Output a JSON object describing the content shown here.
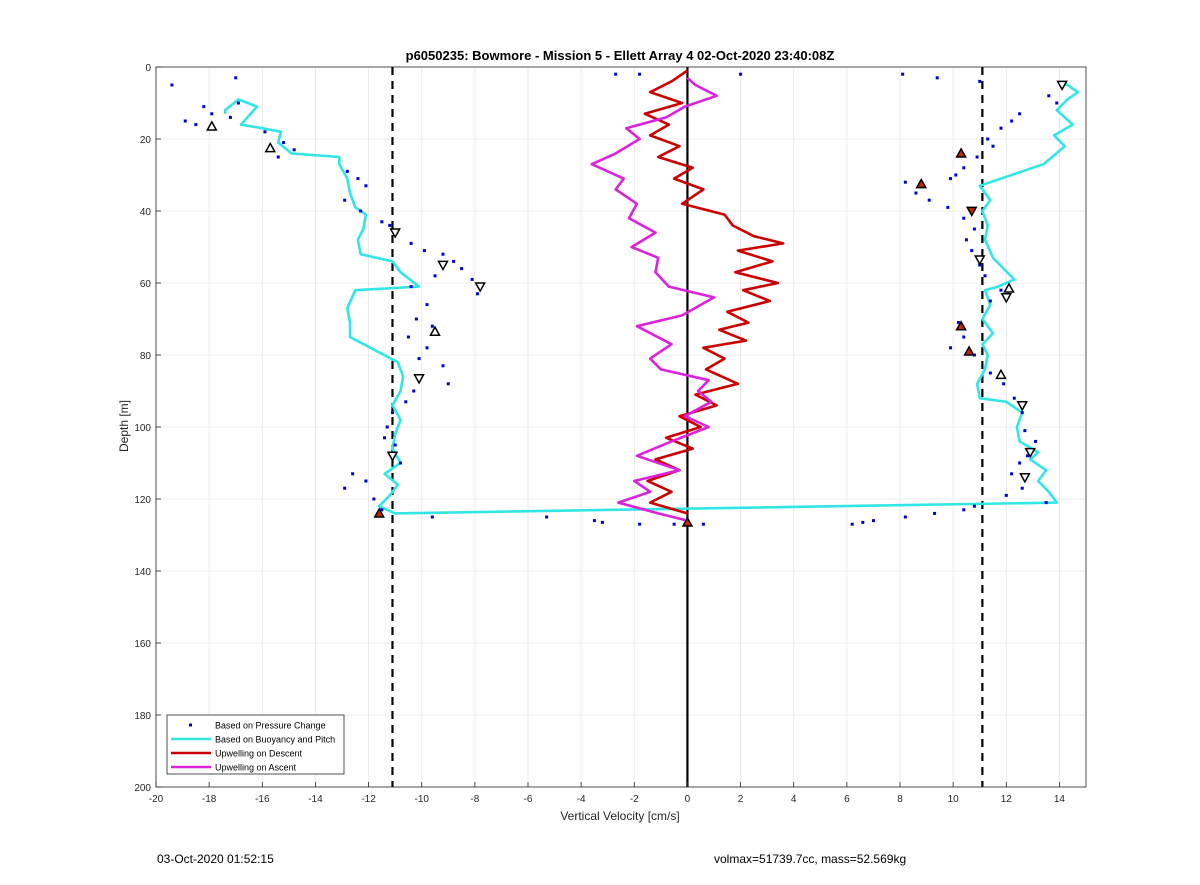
{
  "chart_data": {
    "type": "scatter",
    "title": "p6050235: Bowmore - Mission 5 - Ellett Array 4 02-Oct-2020 23:40:08Z",
    "xlabel": "Vertical Velocity [cm/s]",
    "ylabel": "Depth [m]",
    "xlim": [
      -20,
      15
    ],
    "ylim": [
      0,
      200
    ],
    "y_reversed": true,
    "grid": true,
    "x_ticks": [
      -20,
      -18,
      -16,
      -14,
      -12,
      -10,
      -8,
      -6,
      -4,
      -2,
      0,
      2,
      4,
      6,
      8,
      10,
      12,
      14
    ],
    "y_ticks": [
      0,
      20,
      40,
      60,
      80,
      100,
      120,
      140,
      160,
      180,
      200
    ],
    "legend_position": "bottom-left",
    "legend": [
      {
        "label": "Based on Pressure Change",
        "color": "#0000CC",
        "style": "dot"
      },
      {
        "label": "Based on Buoyancy and Pitch",
        "color": "#33E6E6",
        "style": "line"
      },
      {
        "label": "Upwelling on Descent",
        "color": "#CC0000",
        "style": "line"
      },
      {
        "label": "Upwelling on Ascent",
        "color": "#DD22DD",
        "style": "line"
      }
    ],
    "reference_lines": [
      {
        "x": -11.1,
        "style": "dashed",
        "color": "#000000"
      },
      {
        "x": 11.1,
        "style": "dashed",
        "color": "#000000"
      },
      {
        "x": 0,
        "style": "solid",
        "color": "#000000"
      }
    ],
    "series": [
      {
        "name": "Based on Buoyancy and Pitch",
        "color": "#33E6E6",
        "points": [
          [
            14.1,
            4
          ],
          [
            14.7,
            7
          ],
          [
            14.3,
            9
          ],
          [
            13.9,
            12
          ],
          [
            14.5,
            16
          ],
          [
            13.8,
            19
          ],
          [
            14.2,
            22
          ],
          [
            13.4,
            27
          ],
          [
            12.2,
            30
          ],
          [
            11,
            33
          ],
          [
            11.4,
            37
          ],
          [
            11.1,
            40
          ],
          [
            11.3,
            44
          ],
          [
            11.2,
            48
          ],
          [
            11.5,
            53
          ],
          [
            11.9,
            56
          ],
          [
            12.3,
            59
          ],
          [
            11.7,
            61
          ],
          [
            11.2,
            62
          ],
          [
            11.4,
            66
          ],
          [
            11.1,
            70
          ],
          [
            11.5,
            74
          ],
          [
            11.1,
            77
          ],
          [
            11.3,
            80
          ],
          [
            11.2,
            84
          ],
          [
            10.9,
            88
          ],
          [
            11,
            92
          ],
          [
            12,
            93
          ],
          [
            12.6,
            96
          ],
          [
            12.4,
            100
          ],
          [
            12.5,
            104
          ],
          [
            13.2,
            107
          ],
          [
            12.9,
            109
          ],
          [
            13.5,
            112
          ],
          [
            13.2,
            115
          ],
          [
            13.6,
            118
          ],
          [
            13.9,
            121
          ],
          [
            -11,
            124
          ],
          [
            -11.6,
            122
          ],
          [
            -11.2,
            119
          ],
          [
            -10.9,
            116
          ],
          [
            -11.4,
            113
          ],
          [
            -10.8,
            110
          ],
          [
            -11.1,
            106
          ],
          [
            -11,
            102
          ],
          [
            -10.8,
            98
          ],
          [
            -11.1,
            94
          ],
          [
            -10.8,
            90
          ],
          [
            -10.7,
            86
          ],
          [
            -10.9,
            82
          ],
          [
            -12.7,
            75
          ],
          [
            -12.7,
            71
          ],
          [
            -12.8,
            67
          ],
          [
            -12.5,
            62
          ],
          [
            -10.1,
            61
          ],
          [
            -10.8,
            57
          ],
          [
            -11.1,
            54
          ],
          [
            -12.3,
            52
          ],
          [
            -12.4,
            48
          ],
          [
            -12.2,
            45
          ],
          [
            -12.1,
            41
          ],
          [
            -12.5,
            39
          ],
          [
            -12.7,
            35
          ],
          [
            -12.8,
            31
          ],
          [
            -13.1,
            27
          ],
          [
            -13.1,
            25
          ],
          [
            -14.9,
            24
          ],
          [
            -15.4,
            21
          ],
          [
            -15.3,
            18
          ],
          [
            -16,
            17
          ],
          [
            -16.8,
            16
          ],
          [
            -16.2,
            11
          ],
          [
            -16.9,
            9
          ],
          [
            -17.4,
            12
          ],
          [
            -17.4,
            13
          ]
        ]
      },
      {
        "name": "Upwelling on Descent",
        "color": "#CC0000",
        "points": [
          [
            0,
            1
          ],
          [
            -0.6,
            4
          ],
          [
            -1.4,
            7
          ],
          [
            -0.2,
            10
          ],
          [
            -1.6,
            13
          ],
          [
            -0.7,
            16
          ],
          [
            -1.4,
            19
          ],
          [
            -0.3,
            22
          ],
          [
            -1.1,
            25
          ],
          [
            0.2,
            28
          ],
          [
            -0.5,
            31
          ],
          [
            0.6,
            34
          ],
          [
            -0.2,
            38
          ],
          [
            1.4,
            41
          ],
          [
            1.7,
            44
          ],
          [
            2.5,
            47
          ],
          [
            3.6,
            49
          ],
          [
            1.9,
            51
          ],
          [
            3.2,
            54
          ],
          [
            1.8,
            57
          ],
          [
            3.4,
            60
          ],
          [
            2.1,
            62
          ],
          [
            3.1,
            65
          ],
          [
            1.5,
            68
          ],
          [
            2.3,
            71
          ],
          [
            1.2,
            73
          ],
          [
            2.2,
            76
          ],
          [
            0.6,
            78
          ],
          [
            1.4,
            81
          ],
          [
            0.7,
            84
          ],
          [
            1.9,
            88
          ],
          [
            0.3,
            91
          ],
          [
            1.1,
            94
          ],
          [
            -0.3,
            97
          ],
          [
            0.5,
            100
          ],
          [
            -0.8,
            103
          ],
          [
            0.2,
            106
          ],
          [
            -1.2,
            109
          ],
          [
            -0.3,
            112
          ],
          [
            -1.5,
            115
          ],
          [
            -0.6,
            118
          ],
          [
            -1.4,
            121
          ],
          [
            0,
            124
          ]
        ]
      },
      {
        "name": "Upwelling on Ascent",
        "color": "#DD22DD",
        "points": [
          [
            0,
            126
          ],
          [
            -1.1,
            124
          ],
          [
            -2.6,
            121
          ],
          [
            -1.4,
            118
          ],
          [
            -2.0,
            115
          ],
          [
            -0.3,
            112
          ],
          [
            -1.9,
            108
          ],
          [
            -0.6,
            104
          ],
          [
            0.8,
            100
          ],
          [
            -0.1,
            97
          ],
          [
            0.9,
            93
          ],
          [
            0.4,
            90
          ],
          [
            0.8,
            87
          ],
          [
            -1.0,
            84
          ],
          [
            -1.4,
            81
          ],
          [
            -0.6,
            77
          ],
          [
            -1.9,
            72
          ],
          [
            -0.2,
            69
          ],
          [
            1.0,
            64
          ],
          [
            -0.7,
            61
          ],
          [
            -1.2,
            57
          ],
          [
            -1.1,
            53
          ],
          [
            -2.1,
            50
          ],
          [
            -1.2,
            46
          ],
          [
            -2.2,
            42
          ],
          [
            -1.9,
            38
          ],
          [
            -2.7,
            34
          ],
          [
            -2.4,
            31
          ],
          [
            -3.6,
            27
          ],
          [
            -2.7,
            24
          ],
          [
            -1.8,
            20
          ],
          [
            -2.3,
            17
          ],
          [
            -0.8,
            14
          ],
          [
            -0.1,
            11
          ],
          [
            1.1,
            8
          ],
          [
            0.3,
            5
          ],
          [
            0,
            3
          ]
        ]
      },
      {
        "name": "Based on Pressure Change",
        "color": "#0000CC",
        "points": [
          [
            -19.4,
            5
          ],
          [
            -17,
            3
          ],
          [
            -18.2,
            11
          ],
          [
            -17.9,
            13
          ],
          [
            -17.2,
            14
          ],
          [
            -18.9,
            15
          ],
          [
            -18.5,
            16
          ],
          [
            -16.9,
            10
          ],
          [
            -15.9,
            18
          ],
          [
            -15.2,
            21
          ],
          [
            -14.8,
            23
          ],
          [
            -15.4,
            25
          ],
          [
            -12.8,
            29
          ],
          [
            -12.4,
            31
          ],
          [
            -12.1,
            33
          ],
          [
            -12.9,
            37
          ],
          [
            -12.3,
            40
          ],
          [
            -11.5,
            43
          ],
          [
            -11.2,
            44
          ],
          [
            -11.0,
            46
          ],
          [
            -10.4,
            49
          ],
          [
            -9.9,
            51
          ],
          [
            -9.2,
            52
          ],
          [
            -8.8,
            54
          ],
          [
            -8.5,
            56
          ],
          [
            -9.5,
            58
          ],
          [
            -10.4,
            61
          ],
          [
            -8.1,
            59
          ],
          [
            -7.9,
            63
          ],
          [
            -9.8,
            66
          ],
          [
            -10.2,
            70
          ],
          [
            -9.6,
            72
          ],
          [
            -10.5,
            75
          ],
          [
            -9.8,
            78
          ],
          [
            -10.1,
            81
          ],
          [
            -9.2,
            83
          ],
          [
            -9.0,
            88
          ],
          [
            -10.3,
            90
          ],
          [
            -10.6,
            93
          ],
          [
            -11.1,
            96
          ],
          [
            -11.3,
            100
          ],
          [
            -11.4,
            103
          ],
          [
            -11.0,
            105
          ],
          [
            -10.8,
            110
          ],
          [
            -12.6,
            113
          ],
          [
            -12.9,
            117
          ],
          [
            -12.1,
            115
          ],
          [
            -11.8,
            120
          ],
          [
            -11.5,
            123
          ],
          [
            -9.6,
            125
          ],
          [
            -5.3,
            125
          ],
          [
            -3.5,
            126
          ],
          [
            -3.2,
            126.5
          ],
          [
            -1.8,
            127
          ],
          [
            -0.5,
            127
          ],
          [
            0.6,
            127
          ],
          [
            6.2,
            127
          ],
          [
            6.6,
            126.5
          ],
          [
            7.0,
            126
          ],
          [
            8.2,
            125
          ],
          [
            9.3,
            124
          ],
          [
            10.4,
            123
          ],
          [
            10.8,
            122
          ],
          [
            8.1,
            2
          ],
          [
            2.0,
            2
          ],
          [
            -2.7,
            2
          ],
          [
            -1.8,
            2
          ],
          [
            9.4,
            3
          ],
          [
            11.0,
            4
          ],
          [
            13.6,
            8
          ],
          [
            13.9,
            10
          ],
          [
            12.5,
            13
          ],
          [
            12.2,
            15
          ],
          [
            11.8,
            17
          ],
          [
            11.3,
            20
          ],
          [
            11.5,
            22
          ],
          [
            10.9,
            25
          ],
          [
            10.4,
            28
          ],
          [
            10.1,
            30
          ],
          [
            9.9,
            31
          ],
          [
            8.2,
            32
          ],
          [
            8.6,
            35
          ],
          [
            9.1,
            37
          ],
          [
            9.8,
            39
          ],
          [
            10.4,
            42
          ],
          [
            10.8,
            45
          ],
          [
            10.5,
            48
          ],
          [
            10.7,
            51
          ],
          [
            11.0,
            55
          ],
          [
            11.2,
            58
          ],
          [
            11.8,
            62
          ],
          [
            11.4,
            65
          ],
          [
            10.2,
            71
          ],
          [
            10.4,
            75
          ],
          [
            9.9,
            78
          ],
          [
            10.8,
            80
          ],
          [
            11.4,
            85
          ],
          [
            11.9,
            88
          ],
          [
            12.3,
            92
          ],
          [
            12.6,
            96
          ],
          [
            12.7,
            101
          ],
          [
            13.1,
            104
          ],
          [
            12.8,
            108
          ],
          [
            12.5,
            110
          ],
          [
            12.2,
            113
          ],
          [
            12.6,
            117
          ],
          [
            12.0,
            119
          ],
          [
            13.5,
            121
          ]
        ]
      }
    ],
    "markers": [
      {
        "x": -17.9,
        "y": 16.5,
        "shape": "triangle-up",
        "fill": "none"
      },
      {
        "x": -15.7,
        "y": 22.5,
        "shape": "triangle-up",
        "fill": "none"
      },
      {
        "x": -11.0,
        "y": 46,
        "shape": "triangle-down",
        "fill": "none"
      },
      {
        "x": -9.2,
        "y": 55,
        "shape": "triangle-down",
        "fill": "none"
      },
      {
        "x": -7.8,
        "y": 61,
        "shape": "triangle-down",
        "fill": "none"
      },
      {
        "x": -9.5,
        "y": 73.5,
        "shape": "triangle-up",
        "fill": "none"
      },
      {
        "x": -10.1,
        "y": 86.5,
        "shape": "triangle-down",
        "fill": "none"
      },
      {
        "x": -11.1,
        "y": 108,
        "shape": "triangle-down",
        "fill": "none"
      },
      {
        "x": -11.6,
        "y": 124,
        "shape": "triangle-up",
        "fill": "#CC2200"
      },
      {
        "x": 0,
        "y": 126.5,
        "shape": "triangle-up",
        "fill": "#CC2200"
      },
      {
        "x": 14.1,
        "y": 5,
        "shape": "triangle-down",
        "fill": "none"
      },
      {
        "x": 10.3,
        "y": 24,
        "shape": "triangle-up",
        "fill": "#CC2200"
      },
      {
        "x": 8.8,
        "y": 32.5,
        "shape": "triangle-up",
        "fill": "#CC2200"
      },
      {
        "x": 10.7,
        "y": 40,
        "shape": "triangle-down",
        "fill": "#CC2200"
      },
      {
        "x": 11.0,
        "y": 53.5,
        "shape": "triangle-down",
        "fill": "none"
      },
      {
        "x": 12.1,
        "y": 61.5,
        "shape": "triangle-up",
        "fill": "none"
      },
      {
        "x": 12.0,
        "y": 64,
        "shape": "triangle-down",
        "fill": "none"
      },
      {
        "x": 10.3,
        "y": 72,
        "shape": "triangle-up",
        "fill": "#CC2200"
      },
      {
        "x": 10.6,
        "y": 79,
        "shape": "triangle-up",
        "fill": "#CC2200"
      },
      {
        "x": 11.8,
        "y": 85.5,
        "shape": "triangle-up",
        "fill": "none"
      },
      {
        "x": 12.6,
        "y": 94,
        "shape": "triangle-down",
        "fill": "none"
      },
      {
        "x": 12.9,
        "y": 107,
        "shape": "triangle-down",
        "fill": "none"
      },
      {
        "x": 12.7,
        "y": 114,
        "shape": "triangle-down",
        "fill": "none"
      }
    ]
  },
  "footer": {
    "timestamp": "03-Oct-2020 01:52:15",
    "info": "volmax=51739.7cc, mass=52.569kg"
  }
}
